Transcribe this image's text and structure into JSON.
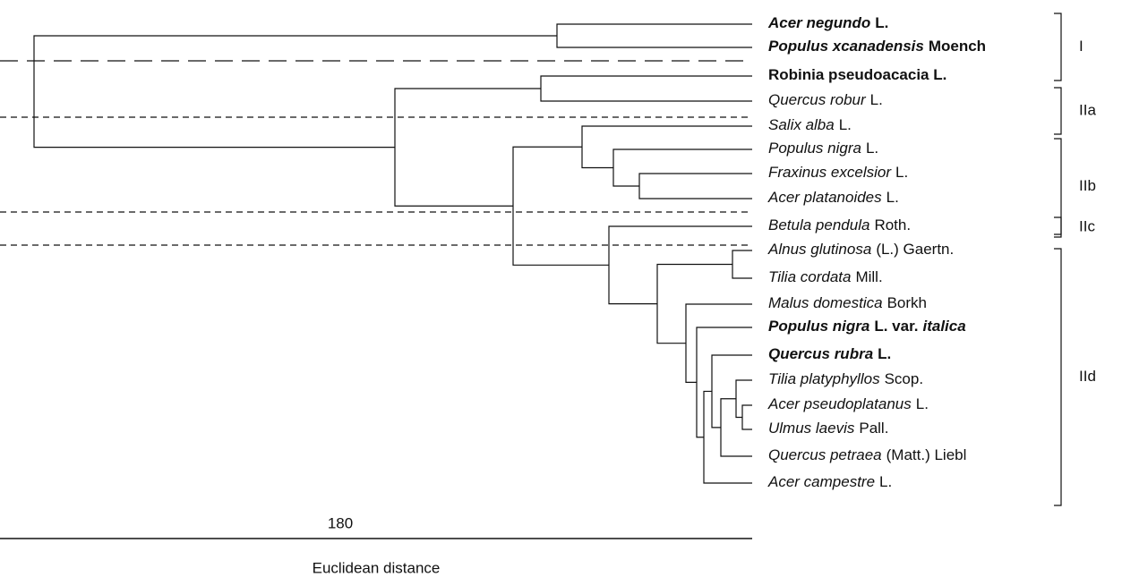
{
  "leaves": [
    {
      "parts": [
        {
          "text": "Acer negundo",
          "style": "bi"
        },
        {
          "text": "L.",
          "style": "b"
        }
      ]
    },
    {
      "parts": [
        {
          "text": "Populus xcanadensis",
          "style": "bi"
        },
        {
          "text": "Moench",
          "style": "b"
        }
      ]
    },
    {
      "parts": [
        {
          "text": "Robinia pseudoacacia L.",
          "style": "b"
        }
      ]
    },
    {
      "parts": [
        {
          "text": "Quercus robur",
          "style": "i"
        },
        {
          "text": "L.",
          "style": "n"
        }
      ]
    },
    {
      "parts": [
        {
          "text": "Salix alba",
          "style": "i"
        },
        {
          "text": "L.",
          "style": "n"
        }
      ]
    },
    {
      "parts": [
        {
          "text": "Populus nigra",
          "style": "i"
        },
        {
          "text": "L.",
          "style": "n"
        }
      ]
    },
    {
      "parts": [
        {
          "text": "Fraxinus excelsior",
          "style": "i"
        },
        {
          "text": "L.",
          "style": "n"
        }
      ]
    },
    {
      "parts": [
        {
          "text": "Acer platanoides",
          "style": "i"
        },
        {
          "text": "L.",
          "style": "n"
        }
      ]
    },
    {
      "parts": [
        {
          "text": "Betula pendula",
          "style": "i"
        },
        {
          "text": "Roth.",
          "style": "n"
        }
      ]
    },
    {
      "parts": [
        {
          "text": "Alnus glutinosa",
          "style": "i"
        },
        {
          "text": "(L.) Gaertn.",
          "style": "n"
        }
      ]
    },
    {
      "parts": [
        {
          "text": "Tilia cordata",
          "style": "i"
        },
        {
          "text": "Mill.",
          "style": "n"
        }
      ]
    },
    {
      "parts": [
        {
          "text": "Malus domestica",
          "style": "i"
        },
        {
          "text": "Borkh",
          "style": "n"
        }
      ]
    },
    {
      "parts": [
        {
          "text": "Populus nigra",
          "style": "bi"
        },
        {
          "text": "L. var.",
          "style": "b"
        },
        {
          "text": "italica",
          "style": "bi"
        }
      ]
    },
    {
      "parts": [
        {
          "text": "Quercus rubra",
          "style": "bi"
        },
        {
          "text": "L.",
          "style": "b"
        }
      ]
    },
    {
      "parts": [
        {
          "text": "Tilia platyphyllos",
          "style": "i"
        },
        {
          "text": "Scop.",
          "style": "n"
        }
      ]
    },
    {
      "parts": [
        {
          "text": "Acer pseudoplatanus",
          "style": "i"
        },
        {
          "text": "L.",
          "style": "n"
        }
      ]
    },
    {
      "parts": [
        {
          "text": "Ulmus laevis",
          "style": "i"
        },
        {
          "text": "Pall.",
          "style": "n"
        }
      ]
    },
    {
      "parts": [
        {
          "text": "Quercus petraea",
          "style": "i"
        },
        {
          "text": "(Matt.) Liebl",
          "style": "n"
        }
      ]
    },
    {
      "parts": [
        {
          "text": "Acer campestre",
          "style": "i"
        },
        {
          "text": "L.",
          "style": "n"
        }
      ]
    }
  ],
  "groups": [
    {
      "label": "I"
    },
    {
      "label": "IIa"
    },
    {
      "label": "IIb"
    },
    {
      "label": "IIc"
    },
    {
      "label": "IId"
    }
  ],
  "scale": {
    "value": 180,
    "axis_label": "Euclidean distance"
  }
}
